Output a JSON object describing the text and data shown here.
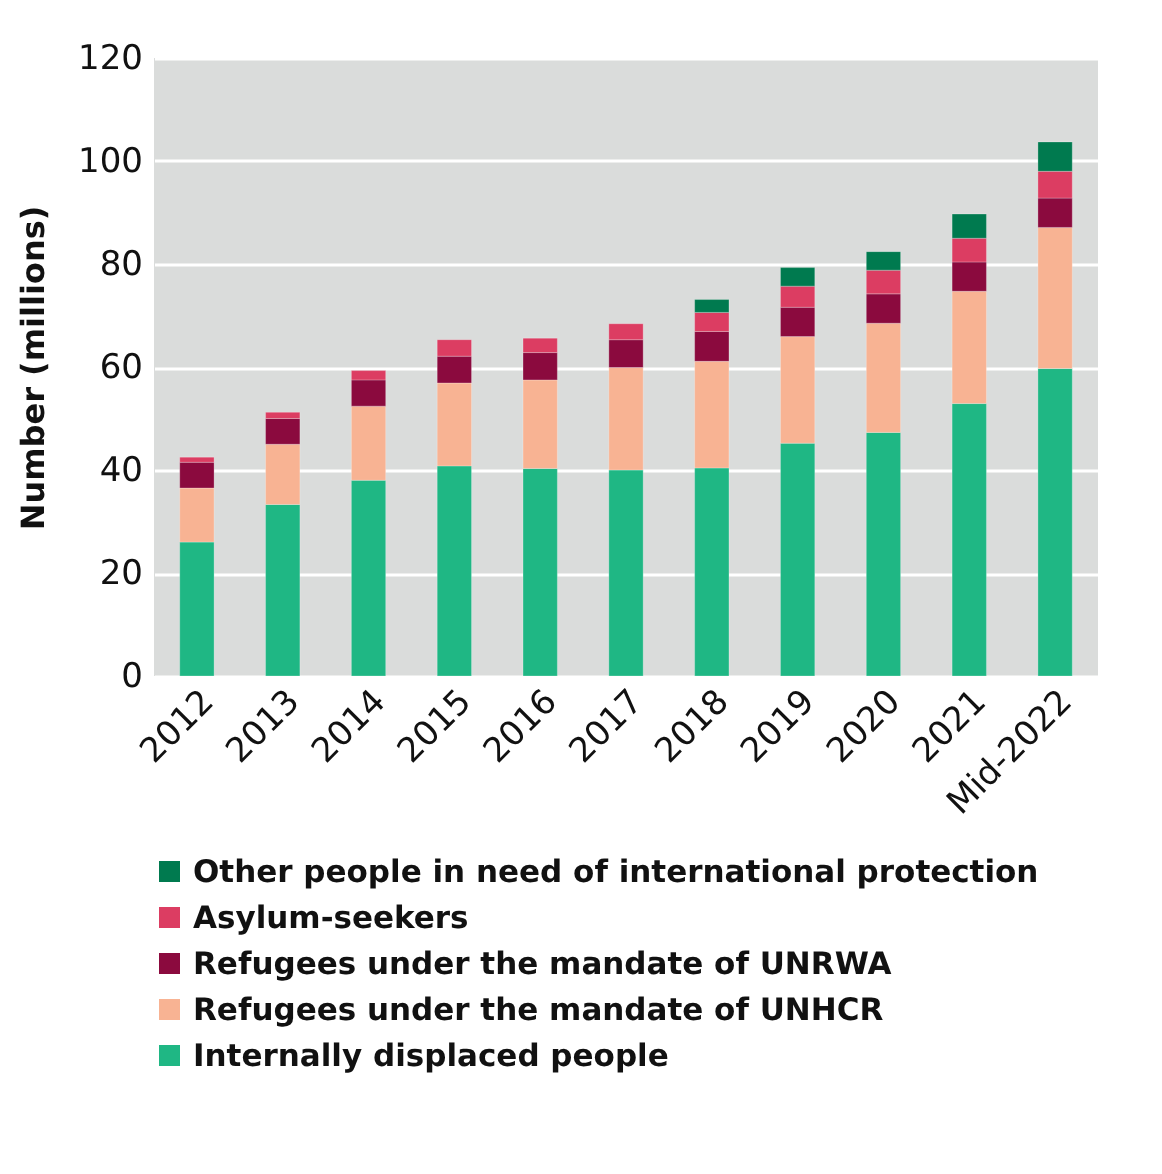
{
  "chart_data": {
    "type": "bar",
    "stacked": true,
    "ylabel": "Number (millions)",
    "categories": [
      "2012",
      "2013",
      "2014",
      "2015",
      "2016",
      "2017",
      "2018",
      "2019",
      "2020",
      "2021",
      "Mid-2022"
    ],
    "series": [
      {
        "name": "Internally displaced people",
        "color": "#1fb784",
        "values": [
          26,
          33.3,
          38,
          40.8,
          40.3,
          40,
          40.4,
          45.2,
          47.3,
          52.9,
          59.7
        ]
      },
      {
        "name": "Refugees under the mandate of UNHCR",
        "color": "#f8b393",
        "values": [
          10.5,
          11.7,
          14.4,
          16.1,
          17.2,
          19.9,
          20.7,
          20.7,
          21.2,
          21.8,
          27.4
        ]
      },
      {
        "name": "Refugees under the mandate of UNRWA",
        "color": "#8b0a3e",
        "values": [
          5,
          5,
          5.1,
          5.2,
          5.3,
          5.4,
          5.8,
          5.7,
          5.7,
          5.7,
          5.7
        ]
      },
      {
        "name": "Asylum-seekers",
        "color": "#dc3d62",
        "values": [
          1,
          1.2,
          1.8,
          3.2,
          2.8,
          3.1,
          3.7,
          4.1,
          4.6,
          4.6,
          5.2
        ]
      },
      {
        "name": "Other people in need of international protection",
        "color": "#007a4f",
        "values": [
          null,
          null,
          null,
          null,
          null,
          null,
          2.5,
          3.6,
          3.6,
          4.7,
          5.7
        ]
      }
    ],
    "ylim": [
      0,
      120
    ],
    "yticks": [
      0,
      20,
      40,
      60,
      80,
      100,
      120
    ],
    "grid": "y",
    "legend": "bottom"
  }
}
